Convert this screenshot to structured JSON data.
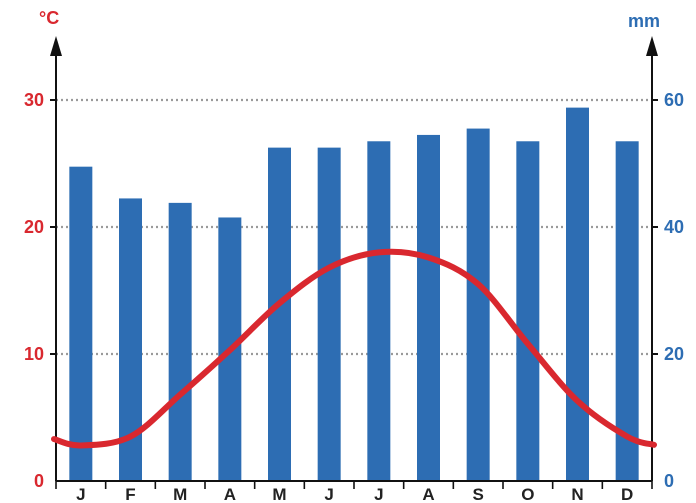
{
  "chart_data": {
    "type": "bar+line",
    "categories": [
      "J",
      "F",
      "M",
      "A",
      "M",
      "J",
      "J",
      "A",
      "S",
      "O",
      "N",
      "D"
    ],
    "series": [
      {
        "axis": "right",
        "type": "bar",
        "values": [
          49.5,
          44.5,
          43.8,
          41.5,
          52.5,
          52.5,
          53.5,
          54.5,
          55.5,
          53.5,
          58.8,
          53.5
        ],
        "color": "#2d6db3"
      },
      {
        "axis": "left",
        "type": "line",
        "values": [
          2.8,
          3.5,
          6.8,
          10.3,
          14.0,
          16.8,
          18.0,
          17.6,
          15.5,
          10.8,
          6.3,
          3.5
        ],
        "color": "#d9282f"
      }
    ],
    "left_axis": {
      "unit": "°C",
      "ticks": [
        "0",
        "10",
        "20",
        "30"
      ],
      "range": [
        0,
        35
      ]
    },
    "right_axis": {
      "unit": "mm",
      "ticks": [
        "0",
        "20",
        "40",
        "60"
      ],
      "range": [
        0,
        70
      ]
    },
    "grid": "dotted horizontal at 10, 20, 30 °C"
  }
}
